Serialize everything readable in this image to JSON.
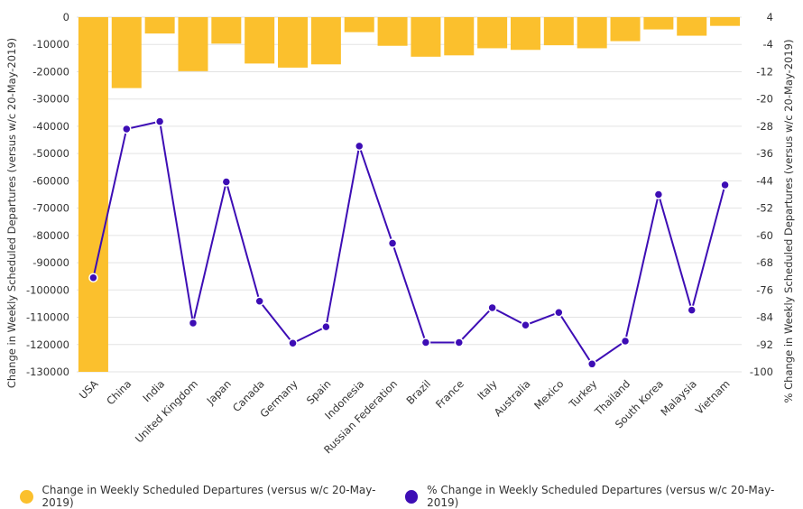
{
  "chart_data": {
    "type": "bar+line",
    "categories": [
      "USA",
      "China",
      "India",
      "United Kingdom",
      "Japan",
      "Canada",
      "Germany",
      "Spain",
      "Indonesia",
      "Russian Federation",
      "Brazil",
      "France",
      "Italy",
      "Australia",
      "Mexico",
      "Turkey",
      "Thailand",
      "South Korea",
      "Malaysia",
      "Vietnam"
    ],
    "series": [
      {
        "name": "Change in Weekly Scheduled Departures (versus w/c 20-May-2019)",
        "type": "bar",
        "axis": "left",
        "color": "#FBC02D",
        "values": [
          -130000,
          -26000,
          -6000,
          -19800,
          -9700,
          -17000,
          -18500,
          -17300,
          -5500,
          -10500,
          -14500,
          -14000,
          -11400,
          -12000,
          -10300,
          -11400,
          -8800,
          -4500,
          -6800,
          -3200
        ]
      },
      {
        "name": "% Change in Weekly Scheduled Departures (versus w/c 20-May-2019)",
        "type": "line",
        "axis": "right",
        "color": "#3D0DB5",
        "values": [
          -72.4,
          -28.8,
          -26.6,
          -85.7,
          -44.3,
          -79.3,
          -91.6,
          -86.8,
          -33.8,
          -62.3,
          -91.4,
          -91.4,
          -81.2,
          -86.3,
          -82.6,
          -97.7,
          -91.0,
          -48.0,
          -81.9,
          -45.2
        ]
      }
    ],
    "y_left": {
      "label": "Change in Weekly Scheduled Departures (versus w/c 20-May-2019)",
      "ylim": [
        -130000,
        0
      ],
      "ticks": [
        "0",
        "-10000",
        "-20000",
        "-30000",
        "-40000",
        "-50000",
        "-60000",
        "-70000",
        "-80000",
        "-90000",
        "-100000",
        "-110000",
        "-120000",
        "-130000"
      ]
    },
    "y_right": {
      "label": "% Change in Weekly Scheduled Departures (versus w/c 20-May-2019)",
      "ylim": [
        -100,
        4
      ],
      "ticks": [
        "4",
        "-4",
        "-12",
        "-20",
        "-28",
        "-36",
        "-44",
        "-52",
        "-60",
        "-68",
        "-76",
        "-84",
        "-92",
        "-100"
      ]
    },
    "grid": true,
    "legend_position": "bottom-left"
  }
}
